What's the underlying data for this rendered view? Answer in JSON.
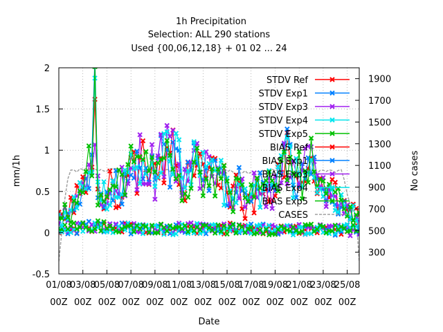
{
  "chart_data": {
    "type": "line",
    "title_lines": [
      "1h Precipitation",
      "Selection: ALL    290 stations",
      "Used {00,06,12,18} + 01 02 ... 24"
    ],
    "xlabel": "Date",
    "ylabel": "mm/1h",
    "y2label": "No cases",
    "ylim": [
      -0.5,
      2
    ],
    "y2lim": [
      100,
      2000
    ],
    "xlim": [
      0,
      25
    ],
    "yticks": [
      "-0.5",
      "0",
      "0.5",
      "1",
      "1.5",
      "2"
    ],
    "y2ticks": [
      "300",
      "500",
      "700",
      "900",
      "1100",
      "1300",
      "1500",
      "1700",
      "1900"
    ],
    "xticks": [
      {
        "day": "01/08",
        "hour": "00Z"
      },
      {
        "day": "03/08",
        "hour": "00Z"
      },
      {
        "day": "05/08",
        "hour": "00Z"
      },
      {
        "day": "07/08",
        "hour": "00Z"
      },
      {
        "day": "09/08",
        "hour": "00Z"
      },
      {
        "day": "11/08",
        "hour": "00Z"
      },
      {
        "day": "13/08",
        "hour": "00Z"
      },
      {
        "day": "15/08",
        "hour": "00Z"
      },
      {
        "day": "17/08",
        "hour": "00Z"
      },
      {
        "day": "19/08",
        "hour": "00Z"
      },
      {
        "day": "21/08",
        "hour": "00Z"
      },
      {
        "day": "23/08",
        "hour": "00Z"
      },
      {
        "day": "25/08",
        "hour": "00Z"
      }
    ],
    "grid": true,
    "legend_position": "top-right",
    "series": [
      {
        "name": "STDV Ref",
        "kind": "stdv",
        "color": "#ff0000"
      },
      {
        "name": "STDV Exp1",
        "kind": "stdv",
        "color": "#0080ff"
      },
      {
        "name": "STDV Exp3",
        "kind": "stdv",
        "color": "#a020f0"
      },
      {
        "name": "STDV Exp4",
        "kind": "stdv",
        "color": "#00e5ee"
      },
      {
        "name": "STDV Exp5",
        "kind": "stdv",
        "color": "#00c000"
      },
      {
        "name": "BIAS Ref",
        "kind": "bias",
        "color": "#ff0000"
      },
      {
        "name": "BIAS Exp1",
        "kind": "bias",
        "color": "#0080ff"
      },
      {
        "name": "BIAS Exp3",
        "kind": "bias",
        "color": "#a020f0"
      },
      {
        "name": "BIAS Exp4",
        "kind": "bias",
        "color": "#00e5ee"
      },
      {
        "name": "BIAS Exp5",
        "kind": "bias",
        "color": "#00c000"
      },
      {
        "name": "CASES",
        "kind": "cases",
        "color": "#a0a0a0"
      }
    ],
    "stdv_profile": [
      [
        0.0,
        0.2
      ],
      [
        0.5,
        0.28
      ],
      [
        1.0,
        0.32
      ],
      [
        1.5,
        0.45
      ],
      [
        2.0,
        0.62
      ],
      [
        2.5,
        0.9
      ],
      [
        2.9,
        1.5
      ],
      [
        3.0,
        1.95
      ],
      [
        3.1,
        0.7
      ],
      [
        3.5,
        0.45
      ],
      [
        4.0,
        0.55
      ],
      [
        4.5,
        0.62
      ],
      [
        5.0,
        0.68
      ],
      [
        5.5,
        0.75
      ],
      [
        6.0,
        0.9
      ],
      [
        6.5,
        0.95
      ],
      [
        7.0,
        1.1
      ],
      [
        7.5,
        1.0
      ],
      [
        8.0,
        0.82
      ],
      [
        8.5,
        1.05
      ],
      [
        9.0,
        1.15
      ],
      [
        9.5,
        1.08
      ],
      [
        10.0,
        1.05
      ],
      [
        10.3,
        0.55
      ],
      [
        10.6,
        0.7
      ],
      [
        11.0,
        0.95
      ],
      [
        11.5,
        1.1
      ],
      [
        12.0,
        0.8
      ],
      [
        12.5,
        0.85
      ],
      [
        13.0,
        0.9
      ],
      [
        13.5,
        0.82
      ],
      [
        14.0,
        0.6
      ],
      [
        14.5,
        0.55
      ],
      [
        15.0,
        0.7
      ],
      [
        15.5,
        0.45
      ],
      [
        16.0,
        0.58
      ],
      [
        16.5,
        0.6
      ],
      [
        17.0,
        0.55
      ],
      [
        17.5,
        0.62
      ],
      [
        18.0,
        0.7
      ],
      [
        18.5,
        0.95
      ],
      [
        19.0,
        1.1
      ],
      [
        19.5,
        0.9
      ],
      [
        20.0,
        0.85
      ],
      [
        20.5,
        0.95
      ],
      [
        21.0,
        1.05
      ],
      [
        21.5,
        0.7
      ],
      [
        22.0,
        0.55
      ],
      [
        22.5,
        0.65
      ],
      [
        23.0,
        0.5
      ],
      [
        23.5,
        0.35
      ],
      [
        24.0,
        0.3
      ],
      [
        24.5,
        0.22
      ],
      [
        25.0,
        0.18
      ]
    ],
    "bias_profile": [
      [
        0.0,
        0.05
      ],
      [
        3.0,
        0.08
      ],
      [
        6.0,
        0.07
      ],
      [
        9.0,
        0.06
      ],
      [
        12.0,
        0.06
      ],
      [
        15.0,
        0.05
      ],
      [
        18.0,
        0.04
      ],
      [
        21.0,
        0.05
      ],
      [
        25.0,
        0.04
      ]
    ],
    "cases_profile": [
      [
        0.0,
        210
      ],
      [
        0.25,
        500
      ],
      [
        0.6,
        900
      ],
      [
        1.0,
        1050
      ],
      [
        3.0,
        1060
      ],
      [
        6.0,
        1055
      ],
      [
        8.0,
        1040
      ],
      [
        10.0,
        1050
      ],
      [
        12.0,
        1050
      ],
      [
        14.0,
        1040
      ],
      [
        16.0,
        1045
      ],
      [
        18.0,
        1050
      ],
      [
        20.0,
        1040
      ],
      [
        22.0,
        1050
      ],
      [
        23.6,
        1040
      ],
      [
        24.2,
        750
      ],
      [
        24.8,
        600
      ],
      [
        25.0,
        210
      ]
    ]
  }
}
